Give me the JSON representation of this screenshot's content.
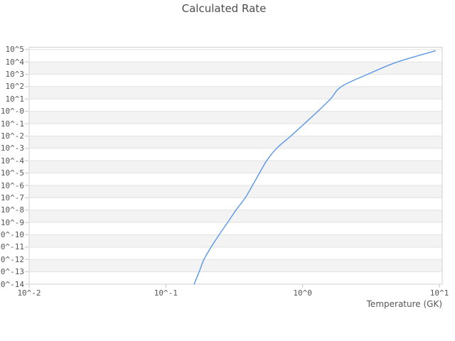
{
  "title": "Calculated Rate",
  "x_axis": {
    "label": "Temperature (GK)",
    "tick_labels": [
      "10^-2",
      "10^-1",
      "10^0",
      "10^1"
    ],
    "tick_exponents": [
      -2,
      -1,
      0,
      1
    ]
  },
  "y_axis": {
    "label": "",
    "tick_labels": [
      "10^5",
      "10^4",
      "10^3",
      "10^2",
      "10^1",
      "10^-0",
      "10^-1",
      "10^-2",
      "10^-3",
      "10^-4",
      "10^-5",
      "10^-6",
      "10^-7",
      "10^-8",
      "10^-9",
      "10^-10",
      "10^-11",
      "10^-12",
      "10^-13",
      "10^-14"
    ],
    "tick_exponents": [
      5,
      4,
      3,
      2,
      1,
      0,
      -1,
      -2,
      -3,
      -4,
      -5,
      -6,
      -7,
      -8,
      -9,
      -10,
      -11,
      -12,
      -13,
      -14
    ]
  },
  "chart_data": {
    "type": "line",
    "title": "Calculated Rate",
    "xlabel": "Temperature (GK)",
    "ylabel": "",
    "x_scale": "log10",
    "y_scale": "log10",
    "xlim_log10": [
      -2,
      1.021
    ],
    "ylim_log10": [
      -14,
      5.19
    ],
    "grid": "horizontal-decade-bands-alternating",
    "legend": "none",
    "series": [
      {
        "name": "Calculated Rate",
        "color": "#5a96e6",
        "points_T_GK_vs_rate": [
          [
            0.161,
            1e-14
          ],
          [
            0.175,
            1e-13
          ],
          [
            0.19,
            1e-12
          ],
          [
            0.214,
            1e-11
          ],
          [
            0.245,
            1e-10
          ],
          [
            0.283,
            1e-09
          ],
          [
            0.326,
            1e-08
          ],
          [
            0.381,
            1e-07
          ],
          [
            0.43,
            1e-06
          ],
          [
            0.484,
            1e-05
          ],
          [
            0.546,
            0.0001
          ],
          [
            0.646,
            0.001
          ],
          [
            0.82,
            0.01
          ],
          [
            1.03,
            0.1
          ],
          [
            1.291,
            1.0
          ],
          [
            1.6,
            10.0
          ],
          [
            1.919,
            100.0
          ],
          [
            2.985,
            1000.0
          ],
          [
            4.943,
            10000.0
          ],
          [
            9.33,
            79000.0
          ]
        ]
      }
    ]
  },
  "colors": {
    "curve": "#5a96e6",
    "band_fill": "#f3f3f3",
    "grid_line": "#e2e2e2",
    "plot_border": "#d2d2d2",
    "tick_mark": "#c4c4c4",
    "text": "#555555",
    "title_text": "#4d4d4d",
    "background": "#ffffff"
  }
}
